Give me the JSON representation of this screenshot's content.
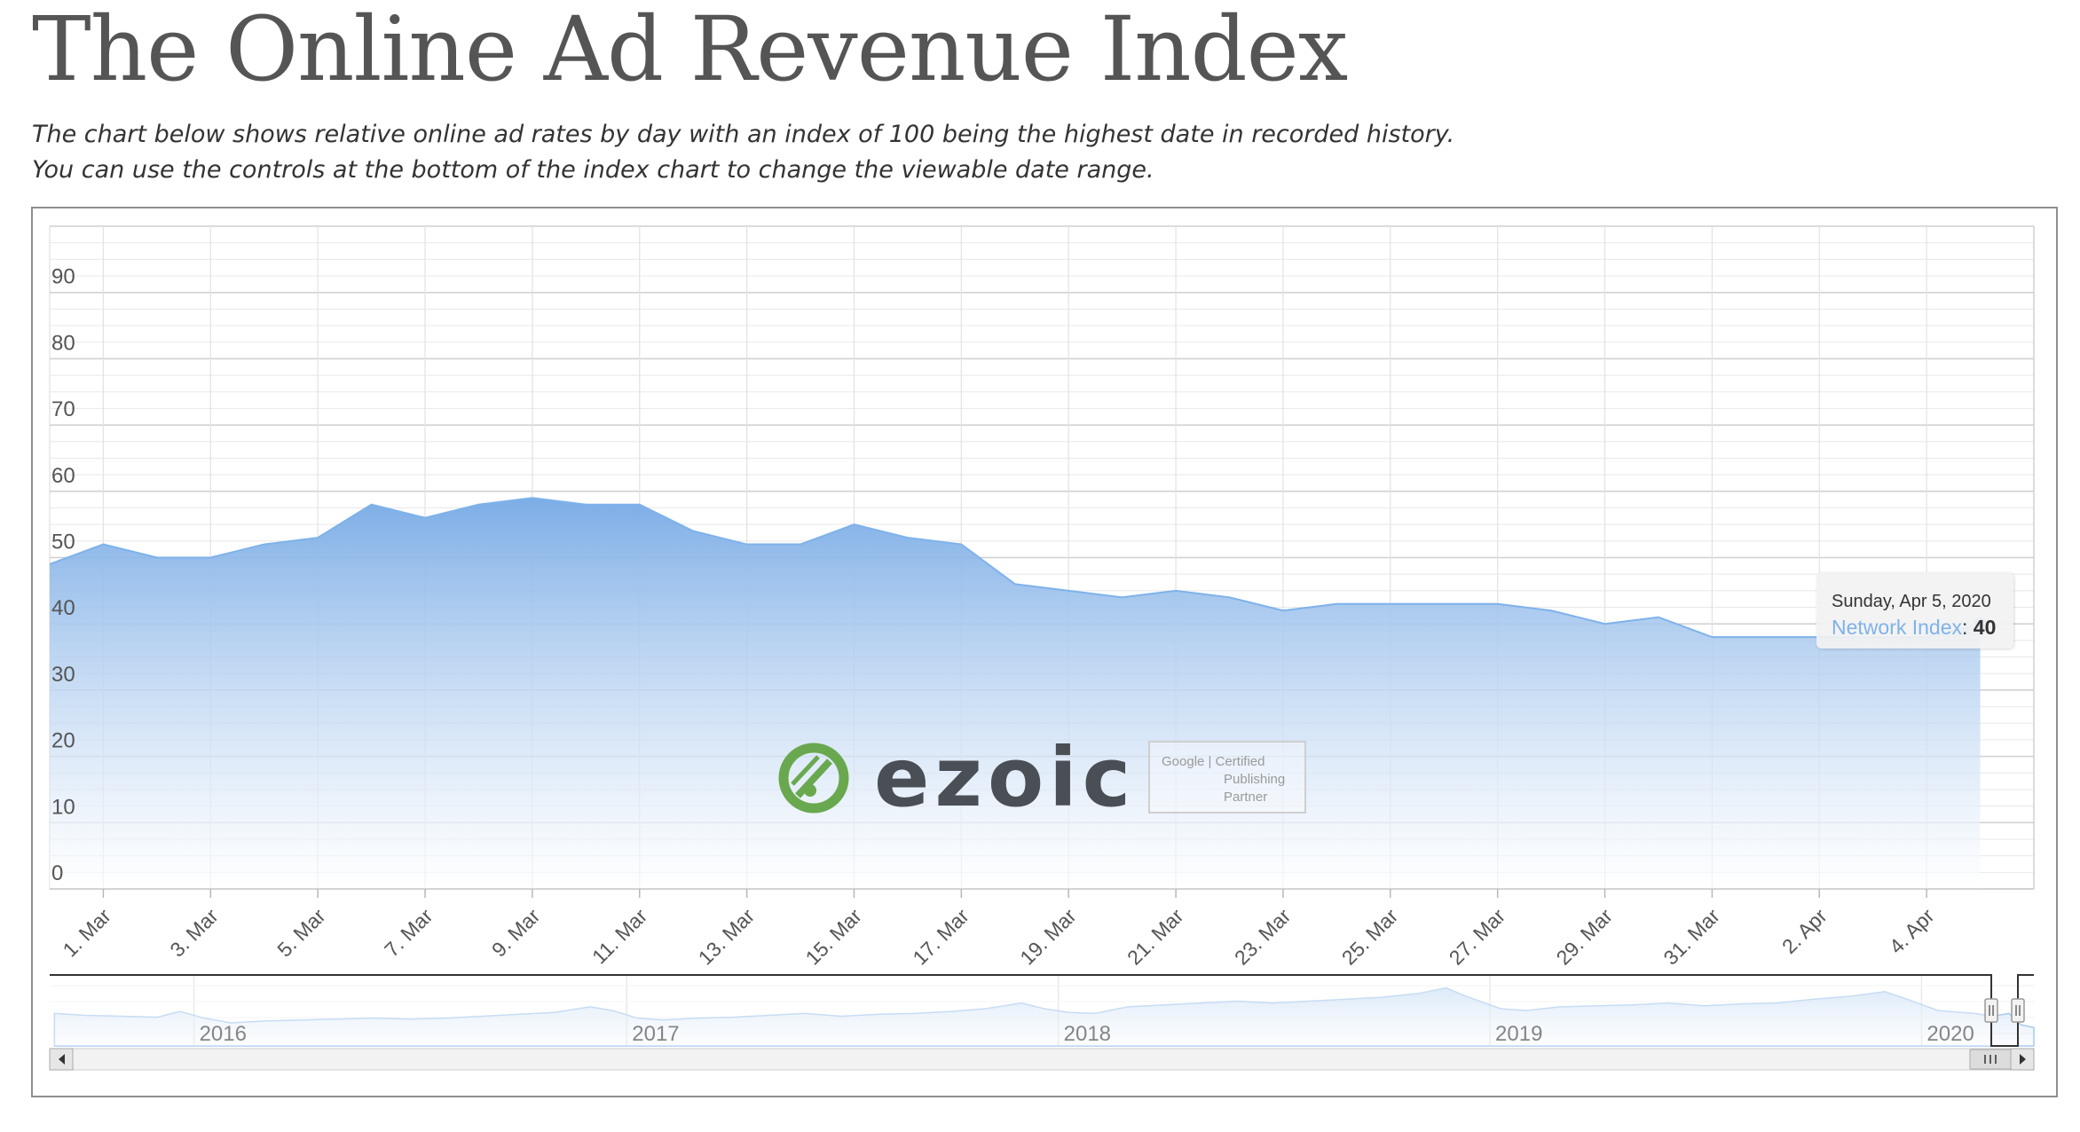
{
  "page": {
    "title": "The Online Ad Revenue Index",
    "description_line1": "The chart below shows relative online ad rates by day with an index of 100 being the highest date in recorded history.",
    "description_line2": "You can use the controls at the bottom of the index chart to change the viewable date range."
  },
  "tooltip": {
    "date": "Sunday, Apr 5, 2020",
    "series": "Network Index",
    "separator": ":",
    "value": "40"
  },
  "watermark": {
    "logo_text": "ezoic",
    "badge_line1": "Google | Certified",
    "badge_line2": "Publishing",
    "badge_line3": "Partner"
  },
  "colors": {
    "series": "#7eb2ea",
    "area_top": "#7cade6",
    "area_bottom": "#ffffff",
    "logo_green": "#6aa84f"
  },
  "chart_data": {
    "type": "area",
    "series": [
      {
        "name": "Network Index",
        "x": [
          "2020-02-29",
          "2020-03-01",
          "2020-03-02",
          "2020-03-03",
          "2020-03-04",
          "2020-03-05",
          "2020-03-06",
          "2020-03-07",
          "2020-03-08",
          "2020-03-09",
          "2020-03-10",
          "2020-03-11",
          "2020-03-12",
          "2020-03-13",
          "2020-03-14",
          "2020-03-15",
          "2020-03-16",
          "2020-03-17",
          "2020-03-18",
          "2020-03-19",
          "2020-03-20",
          "2020-03-21",
          "2020-03-22",
          "2020-03-23",
          "2020-03-24",
          "2020-03-25",
          "2020-03-26",
          "2020-03-27",
          "2020-03-28",
          "2020-03-29",
          "2020-03-30",
          "2020-03-31",
          "2020-04-01",
          "2020-04-02",
          "2020-04-03",
          "2020-04-04",
          "2020-04-05"
        ],
        "values": [
          49,
          52,
          50,
          50,
          52,
          53,
          58,
          56,
          58,
          59,
          58,
          58,
          54,
          52,
          52,
          55,
          53,
          52,
          46,
          45,
          44,
          45,
          44,
          42,
          43,
          43,
          43,
          43,
          42,
          40,
          41,
          38,
          38,
          38,
          38,
          38,
          40
        ]
      }
    ],
    "x_tick_labels": [
      "1. Mar",
      "3. Mar",
      "5. Mar",
      "7. Mar",
      "9. Mar",
      "11. Mar",
      "13. Mar",
      "15. Mar",
      "17. Mar",
      "19. Mar",
      "21. Mar",
      "23. Mar",
      "25. Mar",
      "27. Mar",
      "29. Mar",
      "31. Mar",
      "2. Apr",
      "4. Apr"
    ],
    "x_tick_dates": [
      "2020-03-01",
      "2020-03-03",
      "2020-03-05",
      "2020-03-07",
      "2020-03-09",
      "2020-03-11",
      "2020-03-13",
      "2020-03-15",
      "2020-03-17",
      "2020-03-19",
      "2020-03-21",
      "2020-03-23",
      "2020-03-25",
      "2020-03-27",
      "2020-03-29",
      "2020-03-31",
      "2020-04-02",
      "2020-04-04"
    ],
    "y_tick_labels": [
      "0",
      "10",
      "20",
      "30",
      "40",
      "50",
      "60",
      "70",
      "80",
      "90"
    ],
    "y_ticks": [
      0,
      10,
      20,
      30,
      40,
      50,
      60,
      70,
      80,
      90
    ],
    "xlim": [
      "2020-02-29",
      "2020-04-06"
    ],
    "ylim": [
      0,
      100
    ],
    "title": "",
    "xlabel": "",
    "ylabel": "",
    "grid": true,
    "legend": "none",
    "navigator": {
      "year_labels": [
        "2016",
        "2017",
        "2018",
        "2019",
        "2020"
      ],
      "years": [
        2016,
        2017,
        2018,
        2019,
        2020
      ],
      "range_start": "2015-09-01",
      "range_end": "2020-04-05",
      "selected_start": "2020-02-29",
      "selected_end": "2020-04-05",
      "points": [
        [
          "2015-09-05",
          55
        ],
        [
          "2015-10-01",
          53
        ],
        [
          "2015-11-01",
          52
        ],
        [
          "2015-12-01",
          51
        ],
        [
          "2015-12-20",
          57
        ],
        [
          "2016-01-10",
          50
        ],
        [
          "2016-02-01",
          45
        ],
        [
          "2016-03-01",
          47
        ],
        [
          "2016-04-01",
          48
        ],
        [
          "2016-05-01",
          49
        ],
        [
          "2016-06-01",
          50
        ],
        [
          "2016-07-01",
          49
        ],
        [
          "2016-08-01",
          50
        ],
        [
          "2016-09-01",
          52
        ],
        [
          "2016-10-01",
          54
        ],
        [
          "2016-11-01",
          56
        ],
        [
          "2016-12-01",
          62
        ],
        [
          "2016-12-20",
          58
        ],
        [
          "2017-01-10",
          50
        ],
        [
          "2017-02-01",
          48
        ],
        [
          "2017-03-01",
          50
        ],
        [
          "2017-04-01",
          51
        ],
        [
          "2017-05-01",
          53
        ],
        [
          "2017-06-01",
          55
        ],
        [
          "2017-07-01",
          52
        ],
        [
          "2017-08-01",
          54
        ],
        [
          "2017-09-01",
          55
        ],
        [
          "2017-10-01",
          57
        ],
        [
          "2017-11-01",
          60
        ],
        [
          "2017-12-01",
          66
        ],
        [
          "2017-12-20",
          60
        ],
        [
          "2018-01-10",
          56
        ],
        [
          "2018-02-01",
          55
        ],
        [
          "2018-03-01",
          62
        ],
        [
          "2018-04-01",
          64
        ],
        [
          "2018-05-01",
          66
        ],
        [
          "2018-06-01",
          68
        ],
        [
          "2018-07-01",
          66
        ],
        [
          "2018-08-01",
          68
        ],
        [
          "2018-09-01",
          70
        ],
        [
          "2018-10-01",
          72
        ],
        [
          "2018-11-01",
          76
        ],
        [
          "2018-11-25",
          82
        ],
        [
          "2018-12-10",
          74
        ],
        [
          "2019-01-10",
          60
        ],
        [
          "2019-02-01",
          58
        ],
        [
          "2019-03-01",
          62
        ],
        [
          "2019-04-01",
          63
        ],
        [
          "2019-05-01",
          64
        ],
        [
          "2019-06-01",
          66
        ],
        [
          "2019-07-01",
          63
        ],
        [
          "2019-08-01",
          65
        ],
        [
          "2019-09-01",
          66
        ],
        [
          "2019-10-01",
          70
        ],
        [
          "2019-11-01",
          73
        ],
        [
          "2019-12-01",
          78
        ],
        [
          "2019-12-20",
          70
        ],
        [
          "2020-01-15",
          58
        ],
        [
          "2020-02-15",
          55
        ],
        [
          "2020-03-01",
          52
        ],
        [
          "2020-03-15",
          55
        ],
        [
          "2020-03-25",
          43
        ],
        [
          "2020-04-05",
          40
        ]
      ]
    }
  }
}
